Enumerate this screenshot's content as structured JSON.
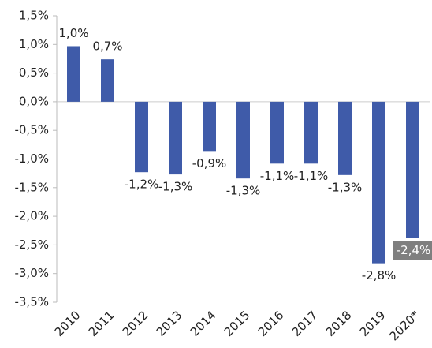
{
  "chart_data": {
    "type": "bar",
    "categories": [
      "2010",
      "2011",
      "2012",
      "2013",
      "2014",
      "2015",
      "2016",
      "2017",
      "2018",
      "2019",
      "2020*"
    ],
    "values": [
      0.97,
      0.74,
      -1.23,
      -1.27,
      -0.86,
      -1.34,
      -1.08,
      -1.08,
      -1.28,
      -2.82,
      -2.38
    ],
    "value_labels": [
      "1,0%",
      "0,7%",
      "-1,2%",
      "-1,3%",
      "-0,9%",
      "-1,3%",
      "-1,1%",
      "-1,1%",
      "-1,3%",
      "-2,8%",
      "-2,4%"
    ],
    "color": "#3f5ba9",
    "ylim": [
      -3.5,
      1.5
    ],
    "yticks": [
      {
        "value": 1.5,
        "label": "1,5%"
      },
      {
        "value": 1.0,
        "label": "1,0%"
      },
      {
        "value": 0.5,
        "label": "0,5%"
      },
      {
        "value": 0,
        "label": "0,0%"
      },
      {
        "value": -0.5,
        "label": "-0,5%"
      },
      {
        "value": -1.0,
        "label": "-1,0%"
      },
      {
        "value": -1.5,
        "label": "-1,5%"
      },
      {
        "value": -2.0,
        "label": "-2,0%"
      },
      {
        "value": -2.5,
        "label": "-2,5%"
      },
      {
        "value": -3.0,
        "label": "-3,0%"
      },
      {
        "value": -3.5,
        "label": "-3,5%"
      }
    ]
  }
}
